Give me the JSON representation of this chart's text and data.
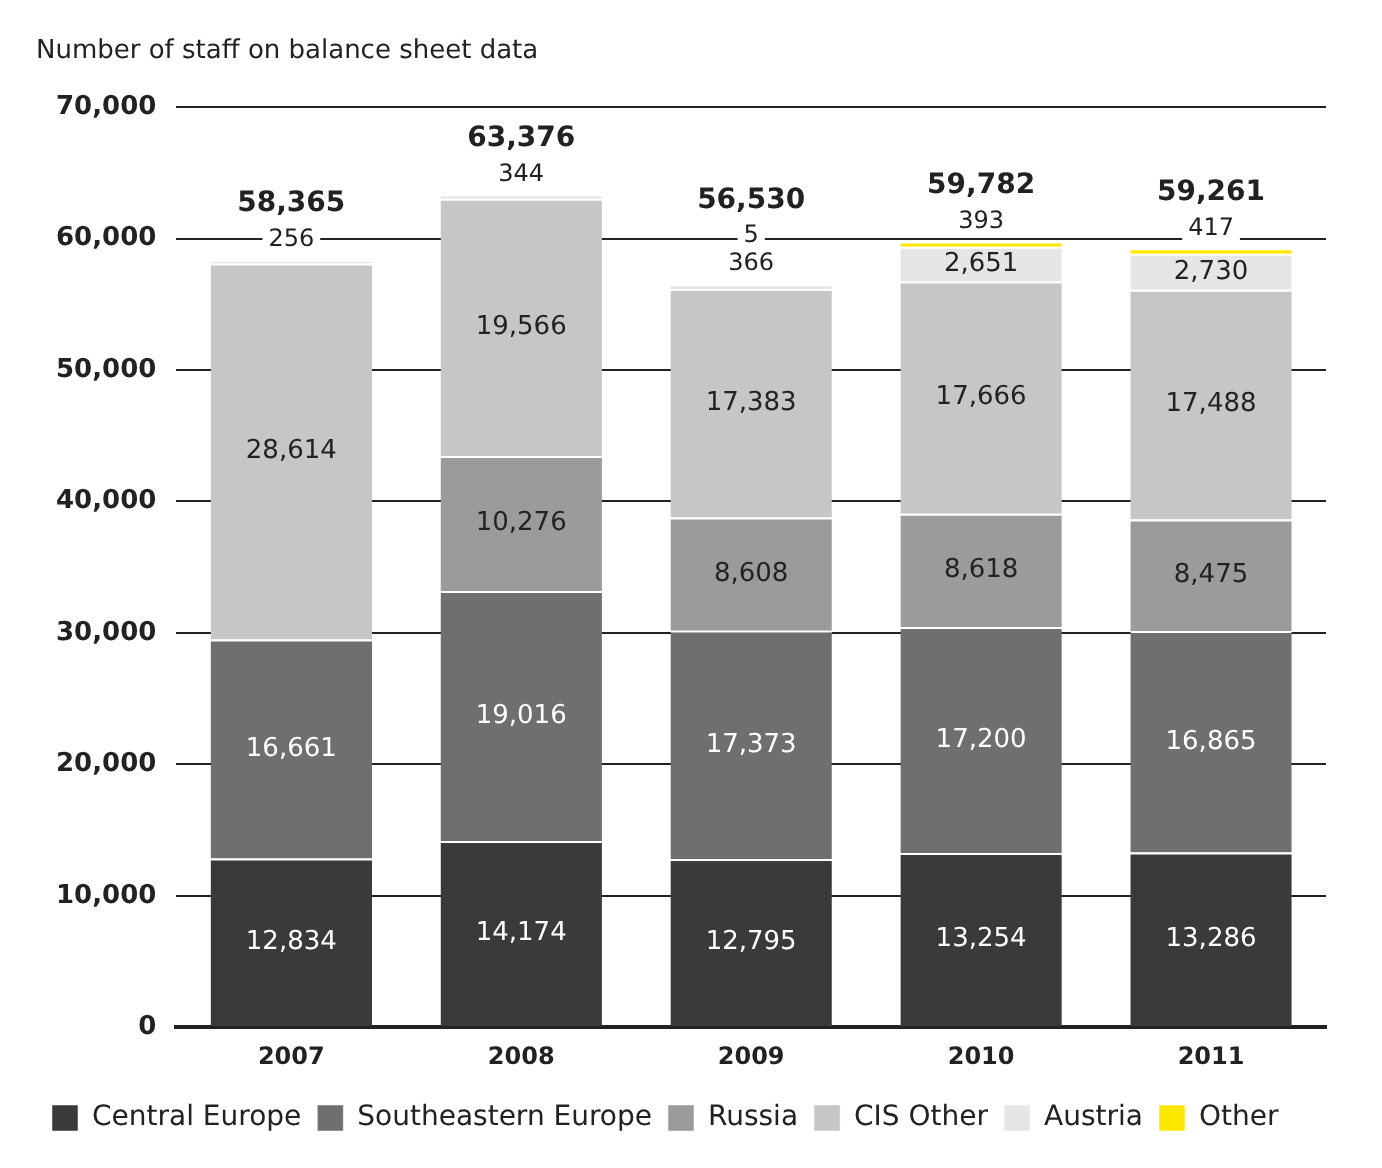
{
  "chart_data": {
    "type": "bar",
    "title": "Number of staff on balance sheet data",
    "categories": [
      "2007",
      "2008",
      "2009",
      "2010",
      "2011"
    ],
    "stacked": true,
    "series": [
      {
        "name": "Central Europe",
        "color": "#3a3a3a",
        "values": [
          12834,
          14174,
          12795,
          13254,
          13286
        ],
        "value_labels": [
          "12,834",
          "14,174",
          "12,795",
          "13,254",
          "13,286"
        ]
      },
      {
        "name": "Southeastern Europe",
        "color": "#6f6f6f",
        "values": [
          16661,
          19016,
          17373,
          17200,
          16865
        ],
        "value_labels": [
          "16,661",
          "19,016",
          "17,373",
          "17,200",
          "16,865"
        ]
      },
      {
        "name": "Russia",
        "color": "#9b9b9b",
        "values": [
          null,
          10276,
          8608,
          8618,
          8475
        ],
        "value_labels": [
          null,
          "10,276",
          "8,608",
          "8,618",
          "8,475"
        ]
      },
      {
        "name": "CIS Other",
        "color": "#c6c6c6",
        "values": [
          28614,
          19566,
          17383,
          17666,
          17488
        ],
        "value_labels": [
          "28,614",
          "19,566",
          "17,383",
          "17,666",
          "17,488"
        ]
      },
      {
        "name": "Austria",
        "color": "#e6e6e6",
        "values": [
          256,
          344,
          366,
          2651,
          2730
        ],
        "value_labels": [
          "256",
          "344",
          "366",
          "2,651",
          "2,730"
        ]
      },
      {
        "name": "Other",
        "color": "#ffe800",
        "values": [
          null,
          null,
          5,
          393,
          417
        ],
        "value_labels": [
          null,
          null,
          "5",
          "393",
          "417"
        ]
      }
    ],
    "totals": [
      "58,365",
      "63,376",
      "56,530",
      "59,782",
      "59,261"
    ],
    "ylim": [
      0,
      70000
    ],
    "yticks": [
      {
        "value": 0,
        "label": "0"
      },
      {
        "value": 10000,
        "label": "10,000"
      },
      {
        "value": 20000,
        "label": "20,000"
      },
      {
        "value": 30000,
        "label": "30,000"
      },
      {
        "value": 40000,
        "label": "40,000"
      },
      {
        "value": 50000,
        "label": "50,000"
      },
      {
        "value": 60000,
        "label": "60,000"
      },
      {
        "value": 70000,
        "label": "70,000"
      }
    ],
    "grid": "y",
    "legend": "bottom"
  }
}
